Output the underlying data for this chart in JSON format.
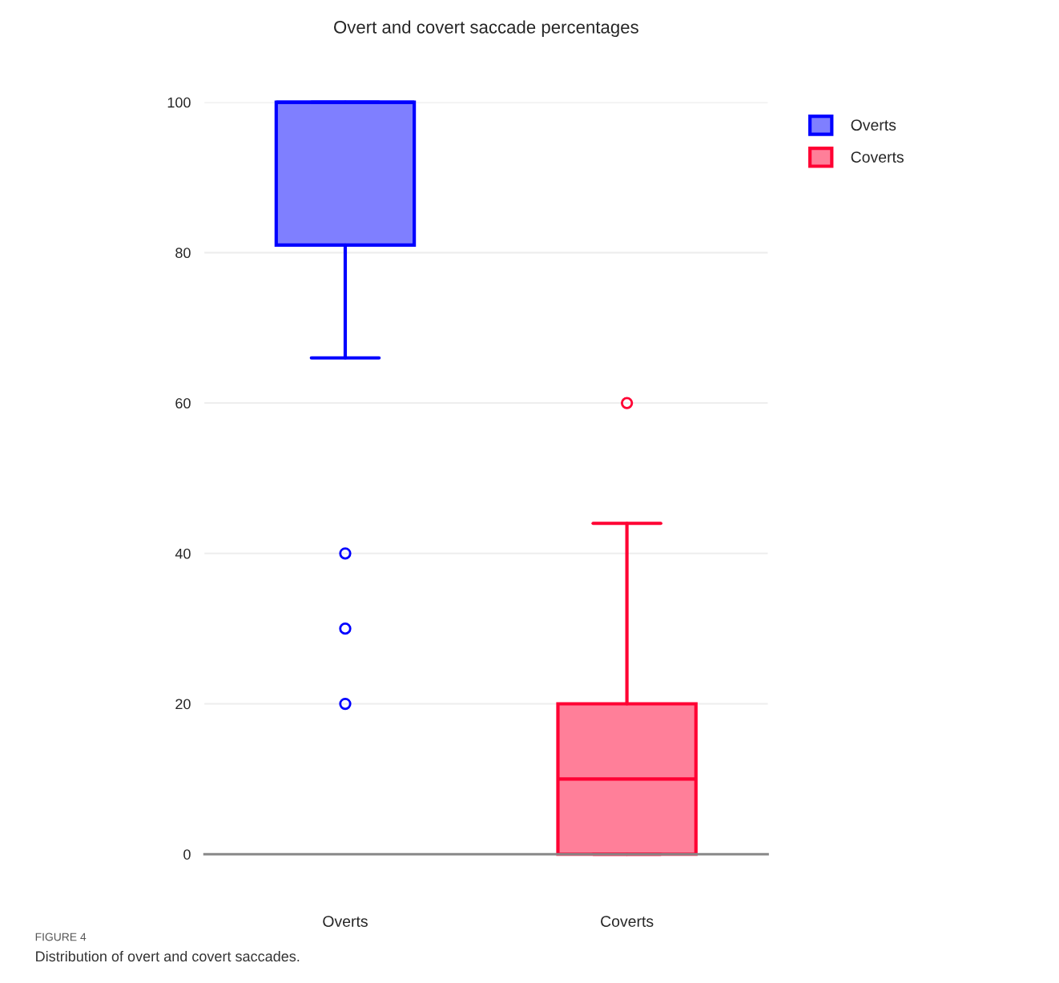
{
  "chart_data": {
    "type": "box",
    "title": "Overt and covert saccade percentages",
    "categories": [
      "Overts",
      "Coverts"
    ],
    "series": [
      {
        "name": "Overts",
        "color": "#0000ff",
        "boxes": [
          {
            "low": 66,
            "q1": 81,
            "median": 100,
            "q3": 100,
            "high": 100,
            "outliers": [
              40,
              30,
              20
            ]
          },
          null
        ]
      },
      {
        "name": "Coverts",
        "color": "#ff0033",
        "boxes": [
          null,
          {
            "low": 0,
            "q1": 0,
            "median": 10,
            "q3": 20,
            "high": 44,
            "outliers": [
              60
            ]
          }
        ]
      }
    ],
    "ylim": [
      0,
      100
    ],
    "yticks": [
      0,
      20,
      40,
      60,
      80,
      100
    ],
    "grid": "y",
    "legend": "top right",
    "annotations": [
      "FIGURE 4",
      "Distribution of overt and covert saccades."
    ]
  }
}
